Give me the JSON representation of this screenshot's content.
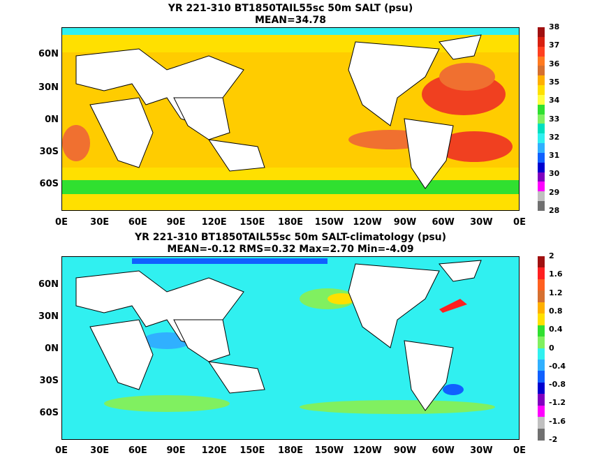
{
  "panels": [
    {
      "title_line1": "YR 221-310 BT1850TAIL55sc 50m SALT (psu)",
      "title_line2": "MEAN=34.78",
      "colorbar_labels": [
        "38",
        "37",
        "36",
        "35",
        "34",
        "33",
        "32",
        "31",
        "30",
        "29",
        "28"
      ],
      "colorbar_colors": [
        "#a01010",
        "#d82010",
        "#ff4020",
        "#ff7a20",
        "#d67030",
        "#ffb000",
        "#ffe000",
        "#ffff40",
        "#30e030",
        "#80f060",
        "#00e0c0",
        "#30f0f0",
        "#30b0ff",
        "#1060ff",
        "#0000d0",
        "#8000c0",
        "#ff00ff",
        "#c0c0c0",
        "#707070"
      ],
      "colors": {
        "ocean_base": "#ffcc00",
        "north_high": "#f0a020",
        "subtrop_atl": "#f04020",
        "low_band": "#30e030",
        "arctic": "#30f0f0"
      }
    },
    {
      "title_line1": "YR 221-310 BT1850TAIL55sc 50m SALT-climatology (psu)",
      "title_line2": "MEAN=-0.12   RMS=0.32   Max=2.70   Min=-4.09",
      "colorbar_labels": [
        "2",
        "1.6",
        "1.2",
        "0.8",
        "0.4",
        "0",
        "-0.4",
        "-0.8",
        "-1.2",
        "-1.6",
        "-2"
      ],
      "colorbar_colors": [
        "#a01010",
        "#ff2020",
        "#ff6020",
        "#d67030",
        "#ffb000",
        "#ffe000",
        "#30e030",
        "#80f060",
        "#30f0f0",
        "#30b0ff",
        "#1060ff",
        "#0000d0",
        "#8000c0",
        "#ff00ff",
        "#c0c0c0",
        "#707070"
      ],
      "colors": {
        "ocean_base": "#30f0f0",
        "pos_patch": "#80f060",
        "neg_patch": "#30b0ff"
      }
    }
  ],
  "lat_labels": [
    "60N",
    "30N",
    "0N",
    "30S",
    "60S"
  ],
  "lon_labels": [
    "0E",
    "30E",
    "60E",
    "90E",
    "120E",
    "150E",
    "180E",
    "150W",
    "120W",
    "90W",
    "60W",
    "30W",
    "0E"
  ]
}
